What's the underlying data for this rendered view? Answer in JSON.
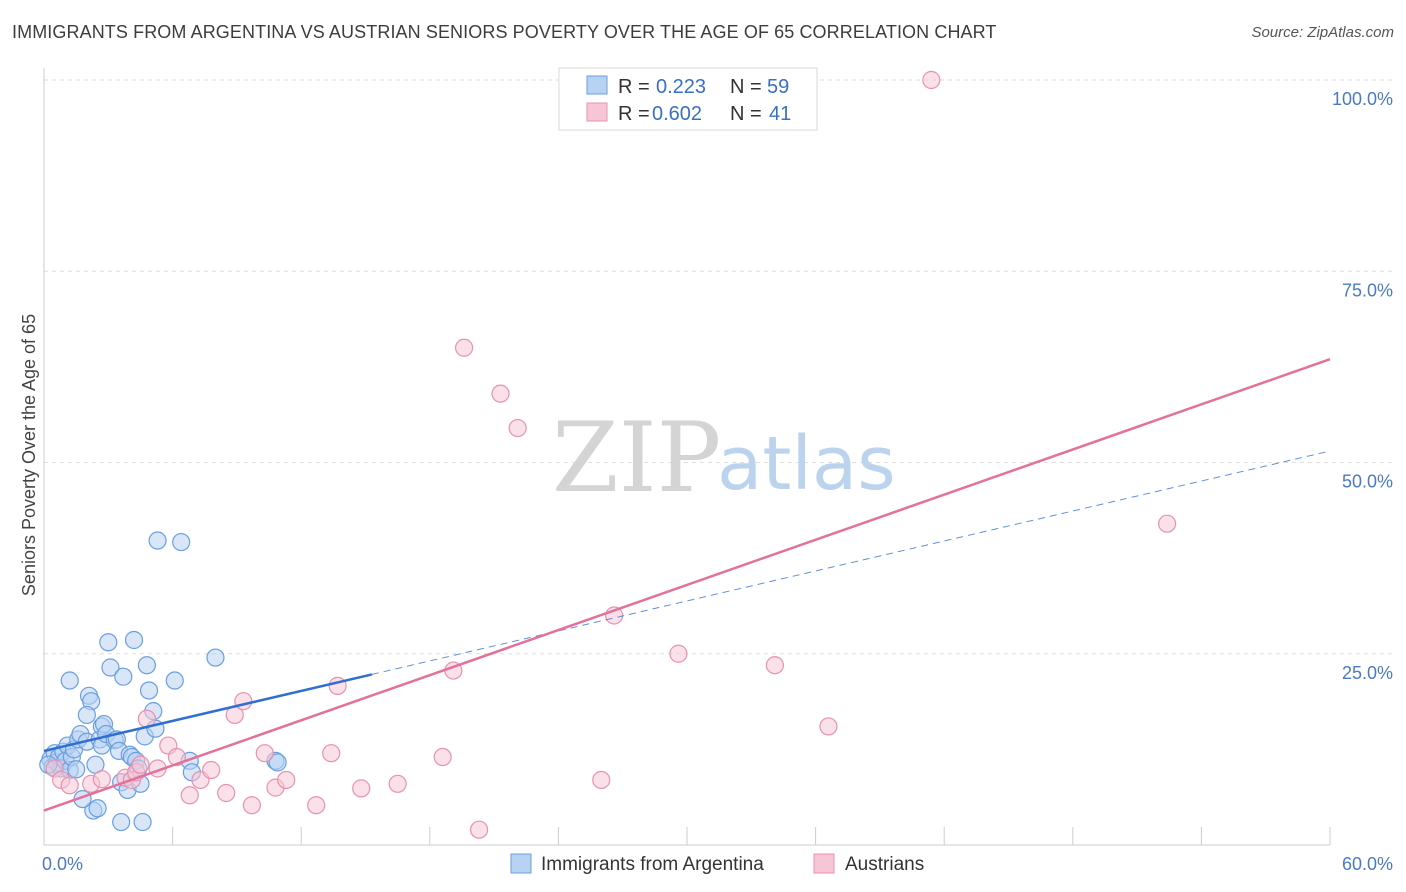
{
  "title": "IMMIGRANTS FROM ARGENTINA VS AUSTRIAN SENIORS POVERTY OVER THE AGE OF 65 CORRELATION CHART",
  "source": "Source: ZipAtlas.com",
  "watermark": {
    "zip": "ZIP",
    "atlas": "atlas"
  },
  "chart_data": {
    "type": "scatter",
    "ylabel": "Seniors Poverty Over the Age of 65",
    "xlim": [
      0,
      60
    ],
    "ylim": [
      0,
      100
    ],
    "x_tick_labels": [
      {
        "value": 0,
        "label": "0.0%"
      },
      {
        "value": 60,
        "label": "60.0%"
      }
    ],
    "y_tick_labels": [
      {
        "value": 25,
        "label": "25.0%"
      },
      {
        "value": 50,
        "label": "50.0%"
      },
      {
        "value": 75,
        "label": "75.0%"
      },
      {
        "value": 100,
        "label": "100.0%"
      }
    ],
    "legend": {
      "r_label": "R =",
      "n_label": "N =",
      "entries": [
        {
          "series": "Immigrants from Argentina",
          "r": "0.223",
          "n": "59"
        },
        {
          "series": "Austrians",
          "r": "0.602",
          "n": "41"
        }
      ]
    },
    "series": [
      {
        "name": "Immigrants from Argentina",
        "color": "#6a9fdf",
        "fill": "#b8d2f3",
        "trend": {
          "x0": 0,
          "y0": 12.3,
          "x1": 15.3,
          "y1": 22.3,
          "dash_x1": 60,
          "dash_y1": 51.5
        },
        "points": [
          [
            0.3,
            11.2
          ],
          [
            0.4,
            10.2
          ],
          [
            0.5,
            12.0
          ],
          [
            0.6,
            10.8
          ],
          [
            0.7,
            11.5
          ],
          [
            0.8,
            10.0
          ],
          [
            0.9,
            12.2
          ],
          [
            1.0,
            11.0
          ],
          [
            1.1,
            13.0
          ],
          [
            1.2,
            9.8
          ],
          [
            1.3,
            11.5
          ],
          [
            1.4,
            12.5
          ],
          [
            1.5,
            9.9
          ],
          [
            1.6,
            13.8
          ],
          [
            1.7,
            14.5
          ],
          [
            1.2,
            21.5
          ],
          [
            2.0,
            13.5
          ],
          [
            2.1,
            19.5
          ],
          [
            2.2,
            18.8
          ],
          [
            2.0,
            17.0
          ],
          [
            2.4,
            10.5
          ],
          [
            2.6,
            13.8
          ],
          [
            2.7,
            15.5
          ],
          [
            2.7,
            13.0
          ],
          [
            2.8,
            15.8
          ],
          [
            2.9,
            14.5
          ],
          [
            3.0,
            26.5
          ],
          [
            3.1,
            23.2
          ],
          [
            3.3,
            13.7
          ],
          [
            3.4,
            13.8
          ],
          [
            3.5,
            12.3
          ],
          [
            3.6,
            8.2
          ],
          [
            3.6,
            3.0
          ],
          [
            3.7,
            22.0
          ],
          [
            3.9,
            7.2
          ],
          [
            4.0,
            11.8
          ],
          [
            4.1,
            11.5
          ],
          [
            4.2,
            26.8
          ],
          [
            4.3,
            11.0
          ],
          [
            4.4,
            10.0
          ],
          [
            4.5,
            8.0
          ],
          [
            4.6,
            3.0
          ],
          [
            4.7,
            14.2
          ],
          [
            4.8,
            23.5
          ],
          [
            4.9,
            20.2
          ],
          [
            5.1,
            17.5
          ],
          [
            5.2,
            15.2
          ],
          [
            5.3,
            39.8
          ],
          [
            6.1,
            21.5
          ],
          [
            6.4,
            39.6
          ],
          [
            6.8,
            11.0
          ],
          [
            6.9,
            9.5
          ],
          [
            8.0,
            24.5
          ],
          [
            10.8,
            11.0
          ],
          [
            10.9,
            10.8
          ],
          [
            2.3,
            4.5
          ],
          [
            1.8,
            6.0
          ],
          [
            2.5,
            4.8
          ],
          [
            0.2,
            10.5
          ]
        ]
      },
      {
        "name": "Austrians",
        "color": "#e891b0",
        "fill": "#f6c6d6",
        "trend": {
          "x0": 0,
          "y0": 4.5,
          "x1": 60,
          "y1": 63.5
        },
        "points": [
          [
            0.5,
            10.0
          ],
          [
            0.8,
            8.5
          ],
          [
            1.2,
            7.8
          ],
          [
            2.2,
            8.0
          ],
          [
            2.7,
            8.6
          ],
          [
            3.8,
            8.8
          ],
          [
            4.1,
            8.5
          ],
          [
            4.3,
            9.5
          ],
          [
            4.5,
            10.5
          ],
          [
            4.8,
            16.5
          ],
          [
            5.3,
            10.0
          ],
          [
            5.8,
            13.0
          ],
          [
            6.2,
            11.5
          ],
          [
            6.8,
            6.5
          ],
          [
            7.3,
            8.5
          ],
          [
            7.8,
            9.8
          ],
          [
            8.5,
            6.8
          ],
          [
            8.9,
            17.0
          ],
          [
            9.3,
            18.8
          ],
          [
            9.7,
            5.2
          ],
          [
            10.3,
            12.0
          ],
          [
            10.8,
            7.5
          ],
          [
            11.3,
            8.5
          ],
          [
            12.7,
            5.2
          ],
          [
            13.4,
            12.0
          ],
          [
            13.7,
            20.8
          ],
          [
            14.8,
            7.4
          ],
          [
            16.5,
            8.0
          ],
          [
            18.6,
            11.5
          ],
          [
            19.1,
            22.8
          ],
          [
            19.6,
            65.0
          ],
          [
            20.3,
            2.0
          ],
          [
            21.3,
            59.0
          ],
          [
            22.1,
            54.5
          ],
          [
            26.6,
            30.0
          ],
          [
            29.6,
            25.0
          ],
          [
            34.1,
            23.5
          ],
          [
            36.6,
            15.5
          ],
          [
            41.4,
            100.0
          ],
          [
            52.4,
            42.0
          ],
          [
            26.0,
            8.5
          ]
        ]
      }
    ]
  }
}
